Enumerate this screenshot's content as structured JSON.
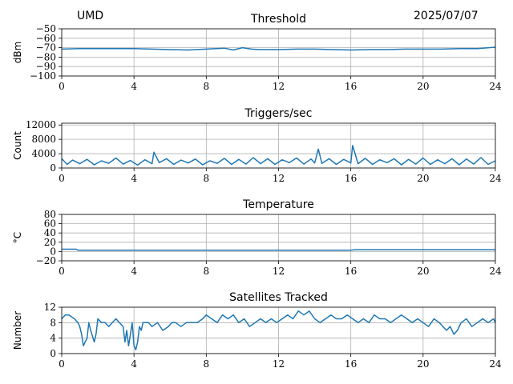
{
  "header": {
    "site": "UMD",
    "date": "2025/07/07"
  },
  "colors": {
    "line": "#1f77b4",
    "grid": "#b0b0b0",
    "axis": "#000000"
  },
  "chart_data": [
    {
      "type": "line",
      "title": "Threshold",
      "ylabel": "dBm",
      "xlim": [
        0,
        24
      ],
      "ylim": [
        -100,
        -50
      ],
      "xticks": [
        "0",
        "4",
        "8",
        "12",
        "16",
        "20",
        "24"
      ],
      "yticks": [
        "−50",
        "−60",
        "−70",
        "−80",
        "−90",
        "−100"
      ],
      "ytick_values": [
        -50,
        -60,
        -70,
        -80,
        -90,
        -100
      ],
      "grid": true,
      "series": [
        {
          "x": [
            0,
            1,
            2,
            3,
            4,
            5,
            6,
            7,
            8,
            9,
            9.5,
            10,
            10.5,
            11,
            12,
            13,
            14,
            15,
            16,
            17,
            18,
            19,
            20,
            21,
            22,
            23,
            24
          ],
          "y": [
            -71.5,
            -71,
            -71,
            -71,
            -71,
            -71.5,
            -72,
            -72.5,
            -71.5,
            -70.5,
            -72.5,
            -70,
            -71.5,
            -72,
            -72,
            -71.5,
            -71.5,
            -72,
            -72.5,
            -72,
            -72,
            -71.5,
            -71.5,
            -71.5,
            -71,
            -71,
            -69.5
          ]
        }
      ]
    },
    {
      "type": "line",
      "title": "Triggers/sec",
      "ylabel": "Count",
      "xlim": [
        0,
        24
      ],
      "ylim": [
        0,
        12500
      ],
      "xticks": [
        "0",
        "4",
        "8",
        "12",
        "16",
        "20",
        "24"
      ],
      "yticks": [
        "0",
        "4000",
        "8000",
        "12000"
      ],
      "ytick_values": [
        0,
        4000,
        8000,
        12000
      ],
      "grid": true,
      "series": [
        {
          "x": [
            0,
            0.3,
            0.6,
            1,
            1.4,
            1.8,
            2.2,
            2.6,
            3,
            3.4,
            3.8,
            4.2,
            4.6,
            5,
            5.1,
            5.4,
            5.8,
            6.2,
            6.6,
            7,
            7.4,
            7.8,
            8.2,
            8.6,
            9,
            9.4,
            9.8,
            10.2,
            10.6,
            11,
            11.4,
            11.8,
            12.2,
            12.6,
            13,
            13.4,
            13.8,
            14,
            14.2,
            14.4,
            14.8,
            15.2,
            15.6,
            16,
            16.1,
            16.4,
            16.8,
            17.2,
            17.6,
            18,
            18.4,
            18.8,
            19.2,
            19.6,
            20,
            20.4,
            20.8,
            21.2,
            21.6,
            22,
            22.4,
            22.8,
            23.2,
            23.6,
            24
          ],
          "y": [
            2600,
            1000,
            2200,
            1200,
            2400,
            900,
            2000,
            1300,
            2800,
            1100,
            2100,
            800,
            2300,
            1200,
            4400,
            1500,
            2600,
            1000,
            2200,
            1400,
            2500,
            900,
            2000,
            1300,
            2700,
            1000,
            2400,
            1100,
            2900,
            1200,
            2600,
            1000,
            2300,
            1500,
            2800,
            1100,
            2500,
            1400,
            5300,
            1300,
            2600,
            1000,
            2400,
            1400,
            6300,
            1200,
            2700,
            1000,
            2300,
            1500,
            2600,
            900,
            2400,
            1100,
            2800,
            1000,
            2300,
            1200,
            2600,
            900,
            2500,
            1100,
            2900,
            1000,
            2000
          ]
        }
      ]
    },
    {
      "type": "line",
      "title": "Temperature",
      "ylabel": "°C",
      "xlim": [
        0,
        24
      ],
      "ylim": [
        -20,
        80
      ],
      "xticks": [
        "0",
        "4",
        "8",
        "12",
        "16",
        "20",
        "24"
      ],
      "yticks": [
        "−20",
        "0",
        "20",
        "40",
        "60",
        "80"
      ],
      "ytick_values": [
        -20,
        0,
        20,
        40,
        60,
        80
      ],
      "grid": true,
      "series": [
        {
          "x": [
            0,
            0.8,
            0.9,
            4,
            8,
            12,
            16,
            16.2,
            20,
            24
          ],
          "y": [
            5,
            5,
            3,
            3,
            3,
            3,
            3,
            4,
            4,
            4
          ]
        }
      ]
    },
    {
      "type": "line",
      "title": "Satellites Tracked",
      "ylabel": "Number",
      "xlim": [
        0,
        24
      ],
      "ylim": [
        0,
        12
      ],
      "xticks": [
        "0",
        "4",
        "8",
        "12",
        "16",
        "20",
        "24"
      ],
      "yticks": [
        "0",
        "4",
        "8",
        "12"
      ],
      "ytick_values": [
        0,
        4,
        8,
        12
      ],
      "grid": true,
      "series": [
        {
          "x": [
            0,
            0.2,
            0.4,
            0.7,
            0.9,
            1,
            1.1,
            1.2,
            1.4,
            1.5,
            1.6,
            1.8,
            1.9,
            2,
            2.2,
            2.4,
            2.6,
            2.8,
            3,
            3.2,
            3.4,
            3.5,
            3.6,
            3.7,
            3.8,
            3.9,
            4,
            4.1,
            4.2,
            4.3,
            4.4,
            4.5,
            4.8,
            5,
            5.3,
            5.6,
            5.9,
            6.1,
            6.3,
            6.6,
            6.9,
            7.2,
            7.5,
            7.8,
            8,
            8.3,
            8.6,
            8.9,
            9.2,
            9.5,
            9.8,
            10.1,
            10.4,
            10.7,
            11,
            11.3,
            11.6,
            11.9,
            12.2,
            12.5,
            12.8,
            13.1,
            13.4,
            13.7,
            14,
            14.3,
            14.6,
            14.9,
            15.2,
            15.5,
            15.8,
            16.1,
            16.4,
            16.7,
            17,
            17.3,
            17.6,
            17.9,
            18.2,
            18.5,
            18.8,
            19.1,
            19.4,
            19.7,
            20,
            20.3,
            20.6,
            20.9,
            21.1,
            21.3,
            21.5,
            21.7,
            21.9,
            22.1,
            22.4,
            22.7,
            23,
            23.3,
            23.6,
            23.9,
            24
          ],
          "y": [
            9,
            10,
            10,
            9,
            8,
            7,
            5,
            2,
            4,
            8,
            6,
            3,
            5,
            9,
            8,
            8,
            7,
            8,
            9,
            8,
            7,
            3,
            6,
            2,
            5,
            8,
            2,
            1,
            3,
            7,
            6,
            8,
            8,
            7,
            8,
            6,
            7,
            8,
            8,
            7,
            8,
            8,
            8,
            9,
            10,
            9,
            8,
            10,
            9,
            10,
            8,
            9,
            7,
            8,
            9,
            8,
            9,
            8,
            9,
            10,
            9,
            11,
            10,
            11,
            9,
            8,
            9,
            10,
            9,
            9,
            10,
            9,
            8,
            9,
            8,
            10,
            9,
            9,
            8,
            9,
            10,
            9,
            8,
            9,
            8,
            7,
            9,
            8,
            7,
            6,
            7,
            5,
            6,
            8,
            9,
            7,
            8,
            9,
            8,
            9,
            8
          ]
        }
      ]
    }
  ]
}
